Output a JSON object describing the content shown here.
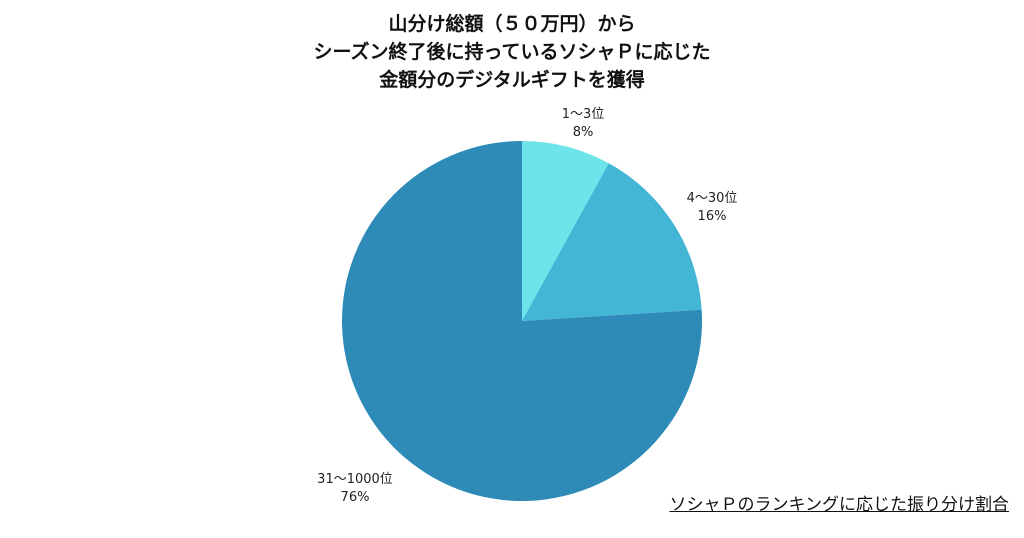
{
  "title_lines": [
    "山分け総額（５０万円）から",
    "シーズン終了後に持っているソシャＰに応じた",
    "金額分のデジタルギフトを獲得"
  ],
  "caption": "ソシャＰのランキングに応じた振り分け割合",
  "chart_data": {
    "type": "pie",
    "title": "山分け総額（５０万円）から シーズン終了後に持っているソシャＰに応じた 金額分のデジタルギフトを獲得",
    "slices": [
      {
        "label": "1〜3位",
        "value": 8,
        "value_label": "8%",
        "color": "#6de4ea"
      },
      {
        "label": "4〜30位",
        "value": 16,
        "value_label": "16%",
        "color": "#43b6d6"
      },
      {
        "label": "31〜1000位",
        "value": 76,
        "value_label": "76%",
        "color": "#2e8bb8"
      }
    ],
    "start_angle": "12 o'clock",
    "direction": "clockwise",
    "legend": "none"
  }
}
